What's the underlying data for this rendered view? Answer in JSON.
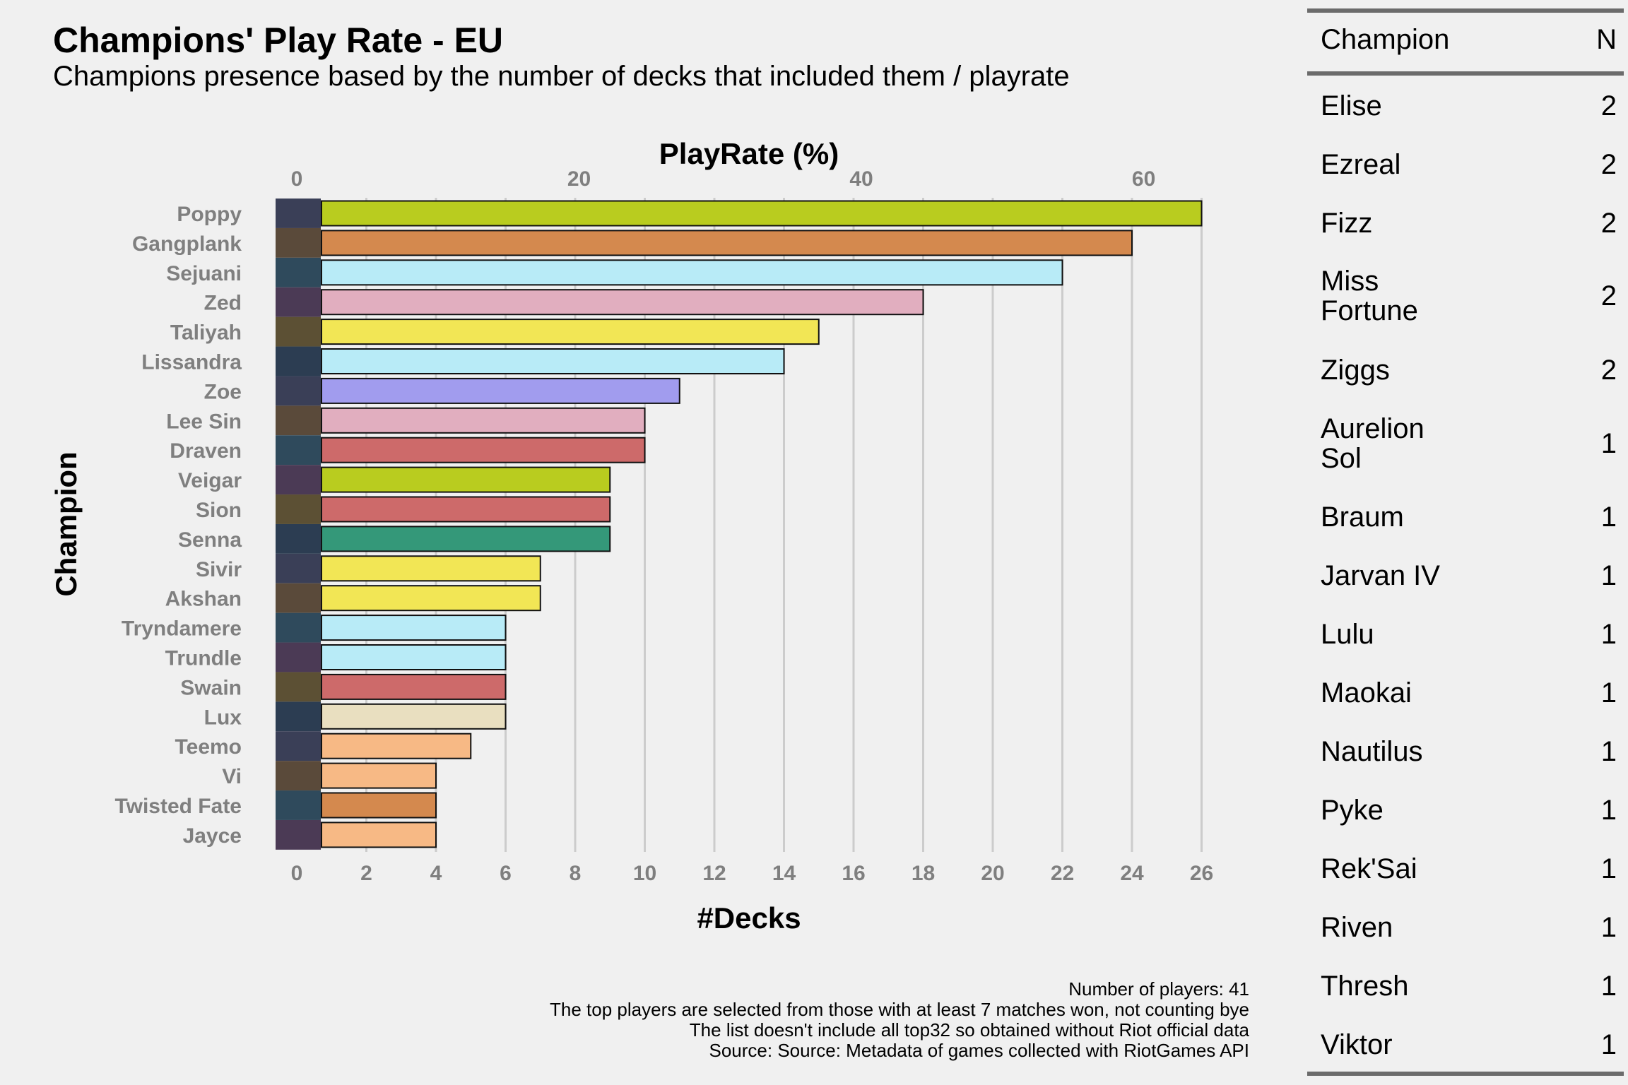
{
  "title": "Champions' Play Rate - EU",
  "subtitle": "Champions presence based by the number of decks that included them / playrate",
  "chart_data": {
    "type": "bar",
    "orientation": "horizontal",
    "xlabel": "#Decks",
    "ylabel": "Champion",
    "secondary_xlabel": "PlayRate (%)",
    "xlim": [
      0,
      26
    ],
    "x_ticks": [
      0,
      2,
      4,
      6,
      8,
      10,
      12,
      14,
      16,
      18,
      20,
      22,
      24,
      26
    ],
    "secondary_ticks": [
      0,
      20,
      40,
      60
    ],
    "grid": true,
    "categories": [
      "Poppy",
      "Gangplank",
      "Sejuani",
      "Zed",
      "Taliyah",
      "Lissandra",
      "Zoe",
      "Lee Sin",
      "Draven",
      "Veigar",
      "Sion",
      "Senna",
      "Sivir",
      "Akshan",
      "Tryndamere",
      "Trundle",
      "Swain",
      "Lux",
      "Teemo",
      "Vi",
      "Twisted Fate",
      "Jayce"
    ],
    "values": [
      26,
      24,
      22,
      18,
      15,
      14,
      11,
      10,
      10,
      9,
      9,
      9,
      7,
      7,
      6,
      6,
      6,
      6,
      5,
      4,
      4,
      4
    ],
    "colors": [
      "#b9cc1f",
      "#d4894e",
      "#b8ebf7",
      "#e1aebf",
      "#f2e655",
      "#b8ebf7",
      "#a19cee",
      "#e1aebf",
      "#cd6a6a",
      "#b9cc1f",
      "#cd6a6a",
      "#349879",
      "#f2e655",
      "#f2e655",
      "#b8ebf7",
      "#b8ebf7",
      "#cd6a6a",
      "#e9dfc0",
      "#f7b985",
      "#f7b985",
      "#d4894e",
      "#f7b985"
    ]
  },
  "caption": [
    "Number of players: 41",
    "The top players are selected from those with at least 7 matches won, not counting bye",
    "The list doesn't include all top32 so obtained without Riot official data",
    "Source: Source: Metadata of games collected with RiotGames API"
  ],
  "table": {
    "header_champion": "Champion",
    "header_n": "N",
    "rows": [
      {
        "name": "Elise",
        "n": "2"
      },
      {
        "name": "Ezreal",
        "n": "2"
      },
      {
        "name": "Fizz",
        "n": "2"
      },
      {
        "name": "Miss Fortune",
        "n": "2"
      },
      {
        "name": "Ziggs",
        "n": "2"
      },
      {
        "name": "Aurelion Sol",
        "n": "1"
      },
      {
        "name": "Braum",
        "n": "1"
      },
      {
        "name": "Jarvan IV",
        "n": "1"
      },
      {
        "name": "Lulu",
        "n": "1"
      },
      {
        "name": "Maokai",
        "n": "1"
      },
      {
        "name": "Nautilus",
        "n": "1"
      },
      {
        "name": "Pyke",
        "n": "1"
      },
      {
        "name": "Rek'Sai",
        "n": "1"
      },
      {
        "name": "Riven",
        "n": "1"
      },
      {
        "name": "Thresh",
        "n": "1"
      },
      {
        "name": "Viktor",
        "n": "1"
      }
    ]
  }
}
